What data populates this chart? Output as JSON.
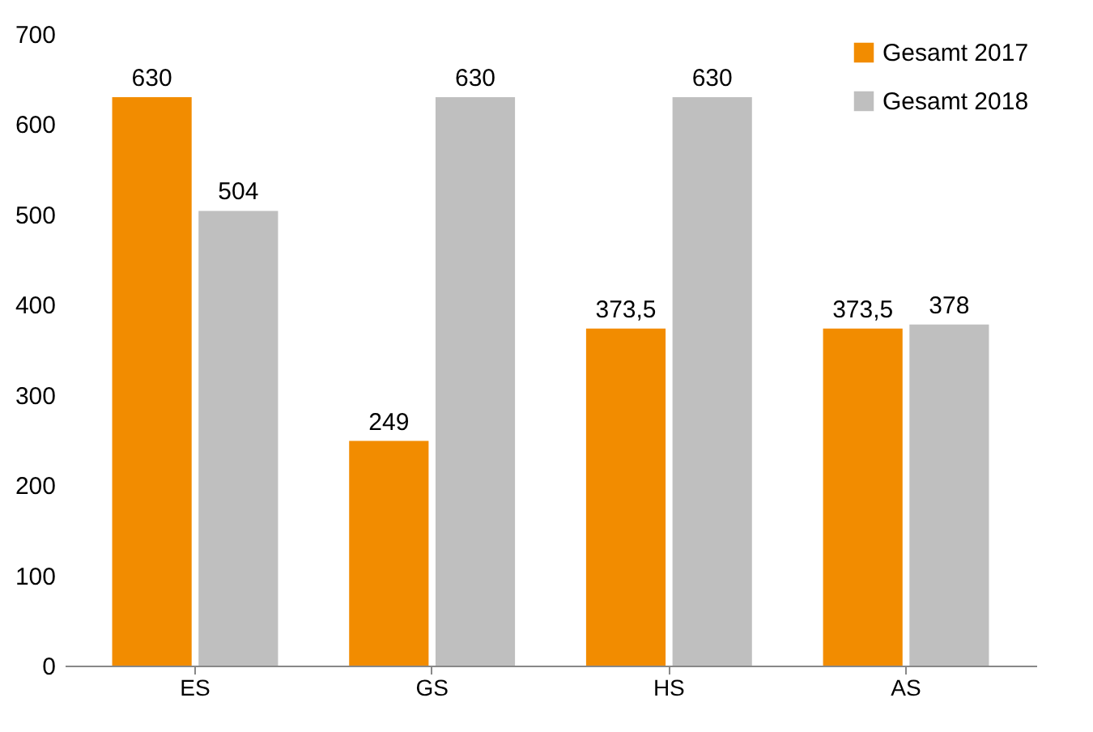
{
  "chart_data": {
    "type": "bar",
    "categories": [
      "ES",
      "GS",
      "HS",
      "AS"
    ],
    "series": [
      {
        "name": "Gesamt 2017",
        "color": "#f28c00",
        "values": [
          630,
          249,
          373.5,
          373.5
        ],
        "value_labels": [
          "630",
          "249",
          "373,5",
          "373,5"
        ]
      },
      {
        "name": "Gesamt 2018",
        "color": "#bfbfbf",
        "values": [
          504,
          630,
          630,
          378
        ],
        "value_labels": [
          "504",
          "630",
          "630",
          "378"
        ]
      }
    ],
    "ylim": [
      0,
      700
    ],
    "yticks": [
      0,
      100,
      200,
      300,
      400,
      500,
      600,
      700
    ],
    "grid": false,
    "legend": "top right"
  }
}
